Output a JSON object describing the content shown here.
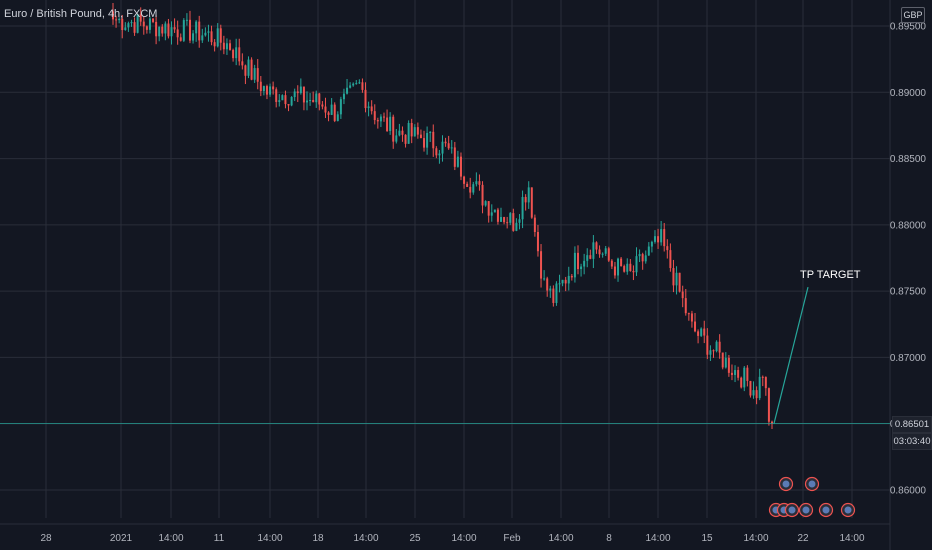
{
  "header": {
    "title": "Euro / British Pound, 4h, FXCM"
  },
  "currency": "GBP",
  "colors": {
    "background": "#131722",
    "up": "#26a69a",
    "down": "#ef5350",
    "grid": "#2a2e39",
    "annotation": "#26a69a"
  },
  "annotation": {
    "label": "TP TARGET"
  },
  "price_tags": {
    "last_price": "0.86501",
    "countdown": "03:03:40"
  },
  "chart_data": {
    "type": "candlestick",
    "title": "Euro / British Pound, 4h, FXCM",
    "y_axis": {
      "ticks": [
        "0.89500",
        "0.89000",
        "0.88500",
        "0.88000",
        "0.87500",
        "0.87000",
        "0.86500",
        "0.86000"
      ],
      "tick_values": [
        0.895,
        0.89,
        0.885,
        0.88,
        0.875,
        0.87,
        0.865,
        0.86
      ],
      "range": [
        0.8577,
        0.8972
      ]
    },
    "x_axis": {
      "ticks": [
        "28",
        "2021",
        "14:00",
        "11",
        "14:00",
        "18",
        "14:00",
        "25",
        "14:00",
        "Feb",
        "14:00",
        "8",
        "14:00",
        "15",
        "14:00",
        "22",
        "14:00"
      ]
    },
    "price_anchors": [
      {
        "bar": 0,
        "price": 0.8955
      },
      {
        "bar": 30,
        "price": 0.8944
      },
      {
        "bar": 38,
        "price": 0.8935
      },
      {
        "bar": 44,
        "price": 0.8917
      },
      {
        "bar": 50,
        "price": 0.89
      },
      {
        "bar": 58,
        "price": 0.8898
      },
      {
        "bar": 66,
        "price": 0.8893
      },
      {
        "bar": 72,
        "price": 0.8885
      },
      {
        "bar": 80,
        "price": 0.8905
      },
      {
        "bar": 86,
        "price": 0.888
      },
      {
        "bar": 92,
        "price": 0.887
      },
      {
        "bar": 100,
        "price": 0.8866
      },
      {
        "bar": 108,
        "price": 0.8858
      },
      {
        "bar": 116,
        "price": 0.8833
      },
      {
        "bar": 122,
        "price": 0.8815
      },
      {
        "bar": 130,
        "price": 0.8802
      },
      {
        "bar": 135,
        "price": 0.883
      },
      {
        "bar": 137,
        "price": 0.8795
      },
      {
        "bar": 140,
        "price": 0.8755
      },
      {
        "bar": 143,
        "price": 0.8744
      },
      {
        "bar": 150,
        "price": 0.8772
      },
      {
        "bar": 156,
        "price": 0.8785
      },
      {
        "bar": 162,
        "price": 0.877
      },
      {
        "bar": 168,
        "price": 0.8762
      },
      {
        "bar": 174,
        "price": 0.878
      },
      {
        "bar": 178,
        "price": 0.8788
      },
      {
        "bar": 182,
        "price": 0.8762
      },
      {
        "bar": 188,
        "price": 0.8722
      },
      {
        "bar": 196,
        "price": 0.8703
      },
      {
        "bar": 202,
        "price": 0.869
      },
      {
        "bar": 206,
        "price": 0.8682
      },
      {
        "bar": 209,
        "price": 0.8675
      },
      {
        "bar": 211,
        "price": 0.869
      },
      {
        "bar": 213,
        "price": 0.8655
      },
      {
        "bar": 214,
        "price": 0.865
      }
    ],
    "last_price": 0.86501,
    "tp_target": {
      "price": 0.875
    },
    "grid": true
  }
}
